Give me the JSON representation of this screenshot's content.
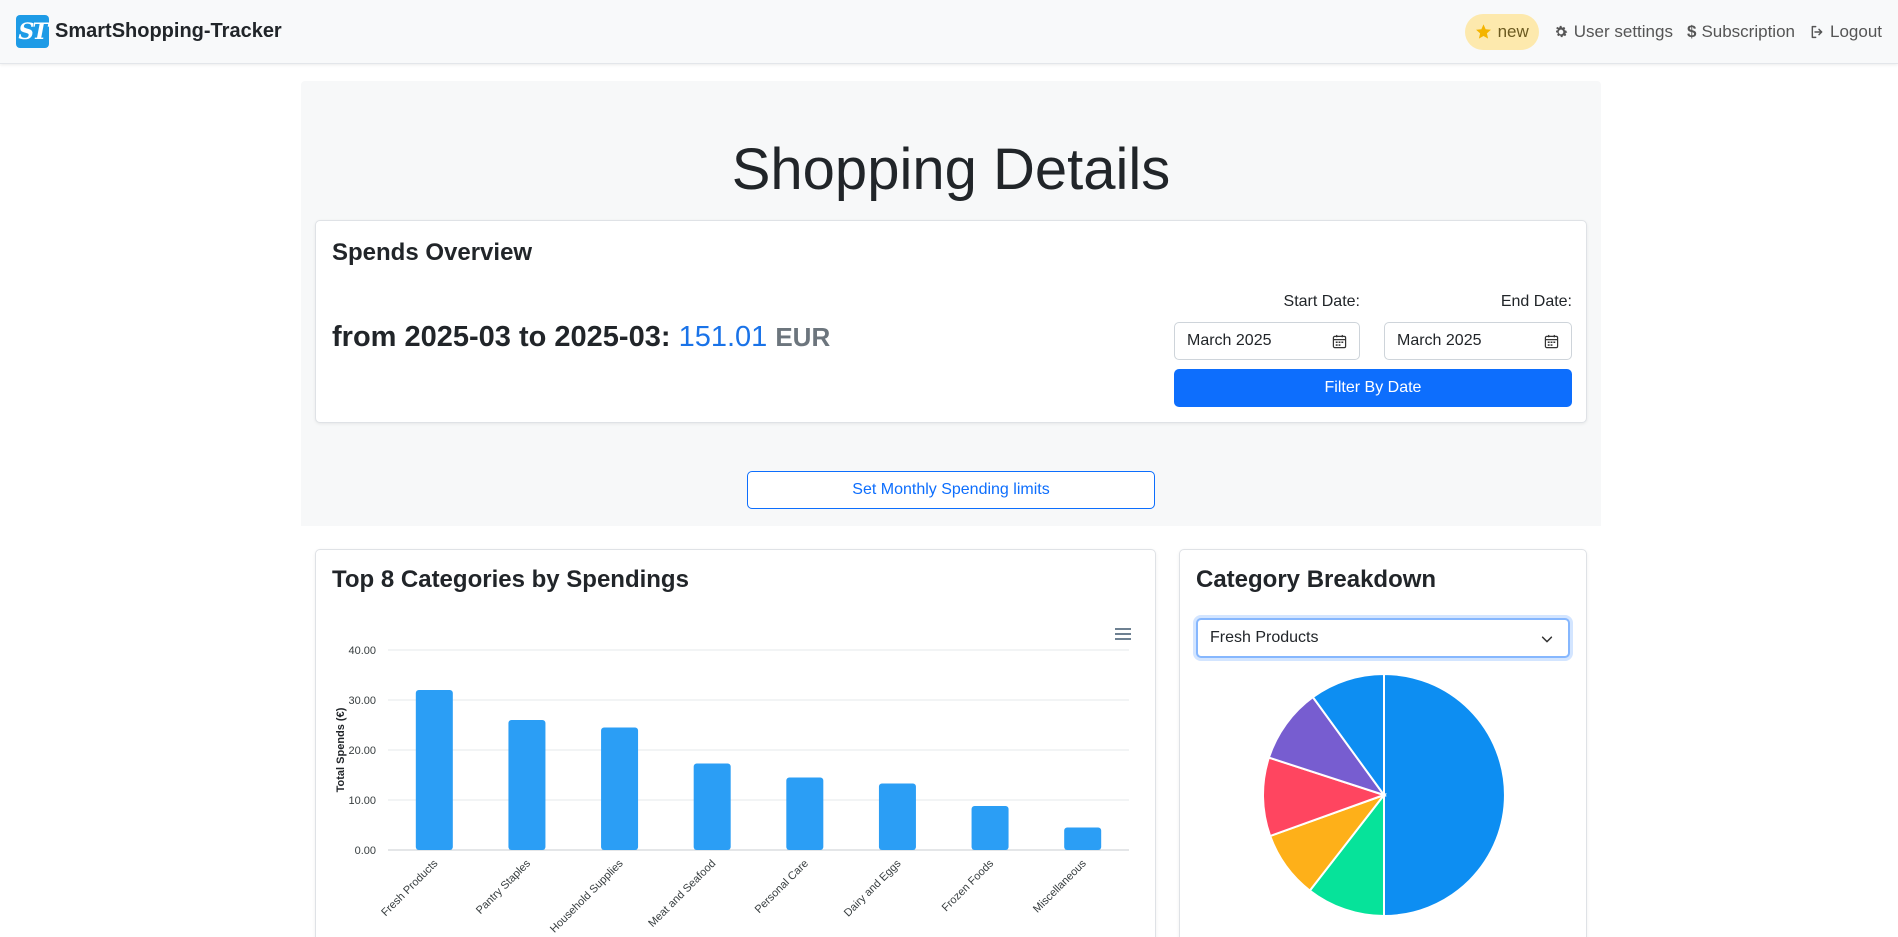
{
  "navbar": {
    "logo_text": "ST",
    "brand": "SmartShopping-Tracker",
    "new_label": "new",
    "user_settings": "User settings",
    "subscription": "Subscription",
    "logout": "Logout"
  },
  "page": {
    "title": "Shopping Details"
  },
  "overview": {
    "title": "Spends Overview",
    "range_prefix": "from 2025-03 to 2025-03: ",
    "amount": "151.01",
    "currency": "EUR",
    "start_label": "Start Date:",
    "end_label": "End Date:",
    "start_value": "March 2025",
    "end_value": "March 2025",
    "filter_button": "Filter By Date"
  },
  "limits_button": "Set Monthly Spending limits",
  "bar_card": {
    "title": "Top 8 Categories by Spendings"
  },
  "pie_card": {
    "title": "Category Breakdown",
    "selected_category": "Fresh Products"
  },
  "chart_data": [
    {
      "type": "bar",
      "title": "",
      "xlabel": "",
      "ylabel": "Total Spends (€)",
      "categories": [
        "Fresh Products",
        "Pantry Staples",
        "Household Supplies",
        "Meat and Seafood",
        "Personal Care",
        "Dairy and Eggs",
        "Frozen Foods",
        "Miscellaneous"
      ],
      "values": [
        32.0,
        26.0,
        24.5,
        17.3,
        14.5,
        13.3,
        8.8,
        4.5
      ],
      "ylim": [
        0,
        40
      ],
      "yticks": [
        "0.00",
        "10.00",
        "20.00",
        "30.00",
        "40.00"
      ],
      "grid": true,
      "color": "#2b9ef5"
    },
    {
      "type": "pie",
      "title": "",
      "values": [
        50,
        10.5,
        9,
        10.5,
        10,
        10
      ],
      "colors": [
        "#0d8ef2",
        "#06e39a",
        "#feb019",
        "#ff4560",
        "#775dd0",
        "#0d8ef2"
      ],
      "order": "clockwise-from-top"
    }
  ]
}
